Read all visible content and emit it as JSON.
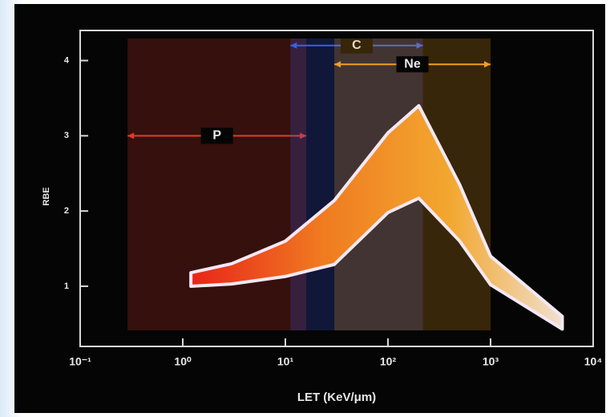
{
  "chart_data": {
    "type": "range-area",
    "x_label": "LET (KeV/μm)",
    "y_label": "RBE",
    "x_scale": "log",
    "xlim": [
      0.1,
      10000
    ],
    "xticks": [
      {
        "value": 0.1,
        "label": "10⁻¹"
      },
      {
        "value": 1,
        "label": "10⁰"
      },
      {
        "value": 10,
        "label": "10¹"
      },
      {
        "value": 100,
        "label": "10²"
      },
      {
        "value": 1000,
        "label": "10³"
      },
      {
        "value": 10000,
        "label": "10⁴"
      }
    ],
    "ylim": [
      0.2,
      4.4
    ],
    "yticks": [
      1,
      2,
      3,
      4
    ],
    "x": [
      1.2,
      3,
      10,
      30,
      100,
      200,
      500,
      1000,
      5000
    ],
    "lower": [
      1.0,
      1.03,
      1.13,
      1.29,
      1.98,
      2.17,
      1.6,
      1.02,
      0.43
    ],
    "upper": [
      1.18,
      1.3,
      1.6,
      2.14,
      3.04,
      3.4,
      2.35,
      1.4,
      0.6
    ],
    "color": "#f0a020",
    "ranges": [
      {
        "label": "P",
        "x": [
          0.29,
          16
        ],
        "y": 3,
        "color": "#e23a2a"
      },
      {
        "label": "C",
        "x": [
          11.2,
          219
        ],
        "y": 4.2,
        "color": "#3a5cf0"
      },
      {
        "label": "Ne",
        "x": [
          30,
          1000
        ],
        "y": 3.95,
        "color": "#f0a020"
      }
    ]
  }
}
